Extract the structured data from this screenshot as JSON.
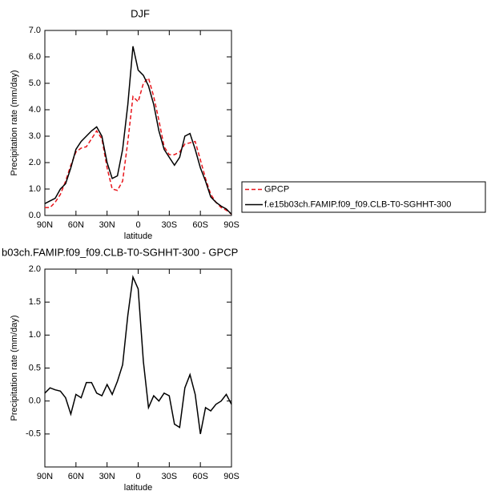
{
  "chart_data": [
    {
      "type": "line",
      "title": "DJF",
      "xlabel": "latitude",
      "ylabel": "Precipitation rate (mm/day)",
      "x": [
        90,
        85,
        80,
        75,
        70,
        65,
        60,
        55,
        50,
        45,
        40,
        35,
        30,
        25,
        20,
        15,
        10,
        5,
        0,
        -5,
        -10,
        -15,
        -20,
        -25,
        -30,
        -35,
        -40,
        -45,
        -50,
        -55,
        -60,
        -65,
        -70,
        -75,
        -80,
        -85,
        -90
      ],
      "xlim": [
        90,
        -90
      ],
      "xticks": [
        {
          "value": 90,
          "label": "90N"
        },
        {
          "value": 60,
          "label": "60N"
        },
        {
          "value": 30,
          "label": "30N"
        },
        {
          "value": 0,
          "label": "0"
        },
        {
          "value": -30,
          "label": "30S"
        },
        {
          "value": -60,
          "label": "60S"
        },
        {
          "value": -90,
          "label": "90S"
        }
      ],
      "ylim": [
        0,
        7
      ],
      "yticks": [
        {
          "value": 0,
          "label": "0.0"
        },
        {
          "value": 1,
          "label": "1.0"
        },
        {
          "value": 2,
          "label": "2.0"
        },
        {
          "value": 3,
          "label": "3.0"
        },
        {
          "value": 4,
          "label": "4.0"
        },
        {
          "value": 5,
          "label": "5.0"
        },
        {
          "value": 6,
          "label": "6.0"
        },
        {
          "value": 7,
          "label": "7.0"
        }
      ],
      "legend": "right",
      "series": [
        {
          "name": "GPCP",
          "color": "#e8151b",
          "line_style": "dashed",
          "values": [
            0.3,
            0.3,
            0.5,
            0.8,
            1.3,
            1.9,
            2.4,
            2.55,
            2.6,
            2.9,
            3.2,
            2.9,
            1.8,
            1.0,
            0.95,
            1.3,
            2.8,
            4.5,
            4.3,
            5.0,
            5.2,
            4.5,
            3.6,
            2.6,
            2.3,
            2.3,
            2.4,
            2.7,
            2.75,
            2.8,
            2.1,
            1.4,
            0.8,
            0.5,
            0.3,
            0.2,
            0.05
          ]
        },
        {
          "name": "f.e15b03ch.FAMIP.f09_f09.CLB-T0-SGHHT-300",
          "color": "#000000",
          "line_style": "solid",
          "values": [
            0.45,
            0.55,
            0.65,
            1.0,
            1.2,
            1.8,
            2.5,
            2.8,
            3.0,
            3.2,
            3.35,
            3.0,
            2.0,
            1.4,
            1.5,
            2.5,
            4.2,
            6.4,
            5.5,
            5.3,
            4.9,
            4.2,
            3.2,
            2.5,
            2.2,
            1.9,
            2.2,
            3.0,
            3.1,
            2.5,
            1.8,
            1.3,
            0.7,
            0.5,
            0.35,
            0.25,
            0.05
          ]
        }
      ]
    },
    {
      "type": "line",
      "title": "b03ch.FAMIP.f09_f09.CLB-T0-SGHHT-300 - GPCP",
      "xlabel": "latitude",
      "ylabel": "Precipitation rate (mm/day)",
      "x": [
        90,
        85,
        80,
        75,
        70,
        65,
        60,
        55,
        50,
        45,
        40,
        35,
        30,
        25,
        20,
        15,
        10,
        5,
        0,
        -5,
        -10,
        -15,
        -20,
        -25,
        -30,
        -35,
        -40,
        -45,
        -50,
        -55,
        -60,
        -65,
        -70,
        -75,
        -80,
        -85,
        -90
      ],
      "xlim": [
        90,
        -90
      ],
      "xticks": [
        {
          "value": 90,
          "label": "90N"
        },
        {
          "value": 60,
          "label": "60N"
        },
        {
          "value": 30,
          "label": "30N"
        },
        {
          "value": 0,
          "label": "0"
        },
        {
          "value": -30,
          "label": "30S"
        },
        {
          "value": -60,
          "label": "60S"
        },
        {
          "value": -90,
          "label": "90S"
        }
      ],
      "ylim": [
        -1,
        2
      ],
      "yticks": [
        {
          "value": -0.5,
          "label": "-0.5"
        },
        {
          "value": 0,
          "label": "0.0"
        },
        {
          "value": 0.5,
          "label": "0.5"
        },
        {
          "value": 1,
          "label": "1.0"
        },
        {
          "value": 1.5,
          "label": "1.5"
        },
        {
          "value": 2,
          "label": "2.0"
        }
      ],
      "series": [
        {
          "color": "#000000",
          "line_style": "solid",
          "values": [
            0.12,
            0.2,
            0.17,
            0.15,
            0.05,
            -0.2,
            0.1,
            0.05,
            0.28,
            0.28,
            0.12,
            0.08,
            0.25,
            0.1,
            0.3,
            0.55,
            1.3,
            1.88,
            1.7,
            0.6,
            -0.1,
            0.08,
            0.0,
            0.12,
            0.08,
            -0.35,
            -0.4,
            0.2,
            0.4,
            0.1,
            -0.5,
            -0.1,
            -0.15,
            -0.05,
            0.0,
            0.1,
            -0.05
          ]
        }
      ]
    }
  ]
}
